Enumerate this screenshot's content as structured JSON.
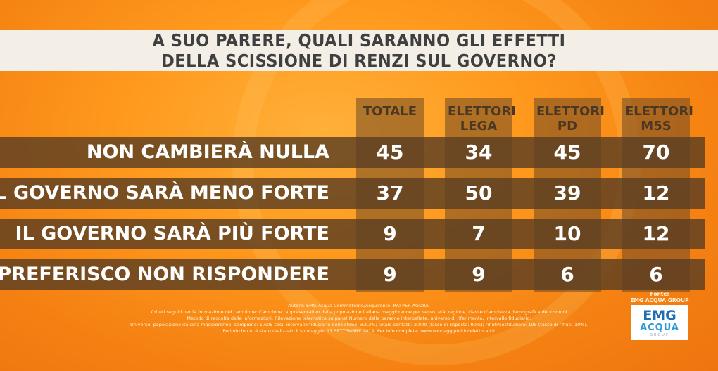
{
  "title_lines": [
    "A SUO PARERE, QUALI SARANNO GLI EFFETTI",
    "DELLA SCISSIONE DI RENZI SUL GOVERNO?"
  ],
  "columns": [
    [
      "TOTALE"
    ],
    [
      "ELETTORI",
      "LEGA"
    ],
    [
      "ELETTORI",
      "PD"
    ],
    [
      "ELETTORI",
      "M5S"
    ]
  ],
  "rows": [
    {
      "label": "NON CAMBIERÀ NULLA",
      "values": [
        "45",
        "34",
        "45",
        "70"
      ]
    },
    {
      "label": "IL GOVERNO SARÀ MENO FORTE",
      "values": [
        "37",
        "50",
        "39",
        "12"
      ]
    },
    {
      "label": "IL GOVERNO SARÀ PIÙ FORTE",
      "values": [
        "9",
        "7",
        "10",
        "12"
      ]
    },
    {
      "label": "PREFERISCO NON RISPONDERE",
      "values": [
        "9",
        "9",
        "6",
        "6"
      ]
    }
  ],
  "chart_data": {
    "type": "table",
    "title": "A SUO PARERE, QUALI SARANNO GLI EFFETTI DELLA SCISSIONE DI RENZI SUL GOVERNO?",
    "categories": [
      "NON CAMBIERÀ NULLA",
      "IL GOVERNO SARÀ MENO FORTE",
      "IL GOVERNO SARÀ PIÙ FORTE",
      "PREFERISCO NON RISPONDERE"
    ],
    "series": [
      {
        "name": "TOTALE",
        "values": [
          45,
          37,
          9,
          9
        ]
      },
      {
        "name": "ELETTORI LEGA",
        "values": [
          34,
          50,
          7,
          9
        ]
      },
      {
        "name": "ELETTORI PD",
        "values": [
          45,
          39,
          10,
          6
        ]
      },
      {
        "name": "ELETTORI M5S",
        "values": [
          70,
          12,
          12,
          6
        ]
      }
    ]
  },
  "footer_lines": [
    "Autore: EMG Acqua Committente/Acquirente: RAI PER AGORÀ.",
    "Criteri seguiti per la formazione del campione: Campione rappresentativo della popolazione italiana maggiorenne per sesso, età, regione, classe d'ampiezza demografica dei comuni",
    "Metodo di raccolta delle informazioni: Rilevazione telematica su panel Numero delle persone interpellate, universo di riferimento, intervallo fiduciario:",
    "Universo: popolazione italiana maggiorenne; campione: 1.605 casi; intervallo fiduciario delle stime: ±2,3%; totale contatti: 2.000 (tasso di risposta: 90%); rifiuti/sostituzioni: 195 (tasso di rifiuti: 10%).",
    "Periodo in cui è stato realizzato il sondaggio: 17 SETTEMBRE 2019. Per info completa: www.sondaggipoliticoelettorali.it"
  ],
  "source": {
    "label": "Fonte:",
    "name": "EMG ACQUA GROUP"
  },
  "logo": {
    "emg": "EMG",
    "acqua": "ACQUA",
    "group": "GROUP"
  },
  "colors": {
    "background": "#f58212",
    "title_band": "#f3efe6",
    "row_bar": "#5c3e22",
    "header_text": "#4a3724"
  }
}
